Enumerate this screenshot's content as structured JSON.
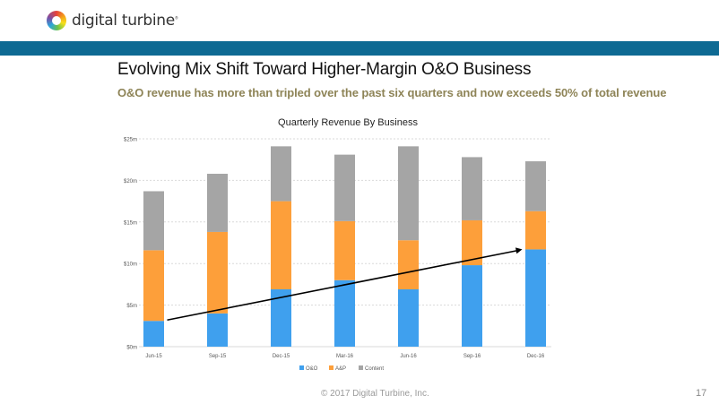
{
  "header": {
    "logo_text": "digital turbine",
    "logo_mark": "®"
  },
  "slide": {
    "title": "Evolving Mix Shift Toward Higher-Margin O&O Business",
    "subtitle": "O&O revenue has more than tripled over the past six quarters and now exceeds 50% of total revenue"
  },
  "footer": {
    "copyright": "© 2017 Digital Turbine, Inc.",
    "page_number": "17"
  },
  "colors": {
    "O&O": "#3fa0ee",
    "A&P": "#fd9f3a",
    "Content": "#a5a5a5",
    "band": "#0e6a93",
    "subtitle": "#8e8457"
  },
  "chart_data": {
    "type": "bar",
    "stacked": true,
    "title": "Quarterly Revenue By Business",
    "xlabel": "",
    "ylabel": "",
    "categories": [
      "Jun-15",
      "Sep-15",
      "Dec-15",
      "Mar-16",
      "Jun-16",
      "Sep-16",
      "Dec-16"
    ],
    "series": [
      {
        "name": "O&O",
        "values": [
          3.1,
          4.0,
          6.9,
          8.0,
          6.9,
          9.8,
          11.7
        ]
      },
      {
        "name": "A&P",
        "values": [
          8.5,
          9.8,
          10.6,
          7.1,
          5.9,
          5.4,
          4.6
        ]
      },
      {
        "name": "Content",
        "values": [
          7.1,
          7.0,
          6.6,
          8.0,
          11.3,
          7.6,
          6.0
        ]
      }
    ],
    "ylim": [
      0,
      25
    ],
    "yticks": [
      0,
      5,
      10,
      15,
      20,
      25
    ],
    "ytick_labels": [
      "$0m",
      "$5m",
      "$10m",
      "$15m",
      "$20m",
      "$25m"
    ],
    "grid": true,
    "legend": "bottom-center",
    "annotations": [
      {
        "type": "arrow",
        "description": "Trend arrow from Jun-15 O&O to Dec-16 O&O",
        "from": [
          "Jun-15",
          3.1
        ],
        "to": [
          "Dec-16",
          11.7
        ]
      }
    ]
  }
}
